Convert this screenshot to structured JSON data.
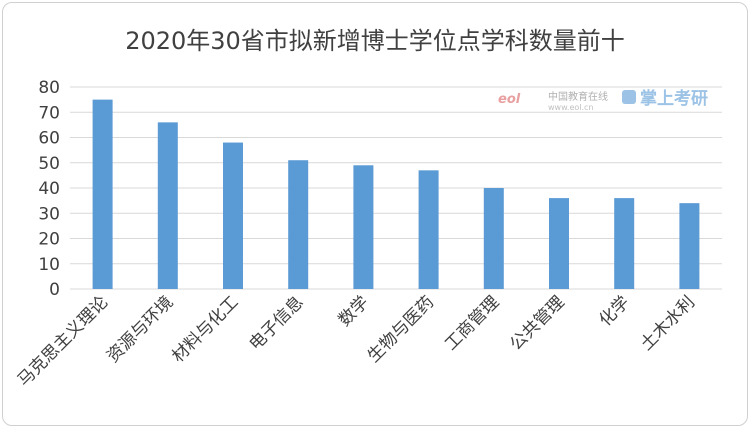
{
  "chart_data": {
    "type": "bar",
    "title": "2020年30省市拟新增博士学位点学科数量前十",
    "categories": [
      "马克思主义理论",
      "资源与环境",
      "材料与化工",
      "电子信息",
      "数学",
      "生物与医药",
      "工商管理",
      "公共管理",
      "化学",
      "土木水利"
    ],
    "values": [
      75,
      66,
      58,
      51,
      49,
      47,
      40,
      36,
      36,
      34
    ],
    "ylim": [
      0,
      80
    ],
    "yticks": [
      0,
      10,
      20,
      30,
      40,
      50,
      60,
      70,
      80
    ],
    "grid": true,
    "bar_color": "#5b9bd5"
  },
  "watermark": {
    "logo_text": "eol",
    "site_cn": "中国教育在线",
    "site_url": "www.eol.cn",
    "brand": "掌上考研"
  }
}
